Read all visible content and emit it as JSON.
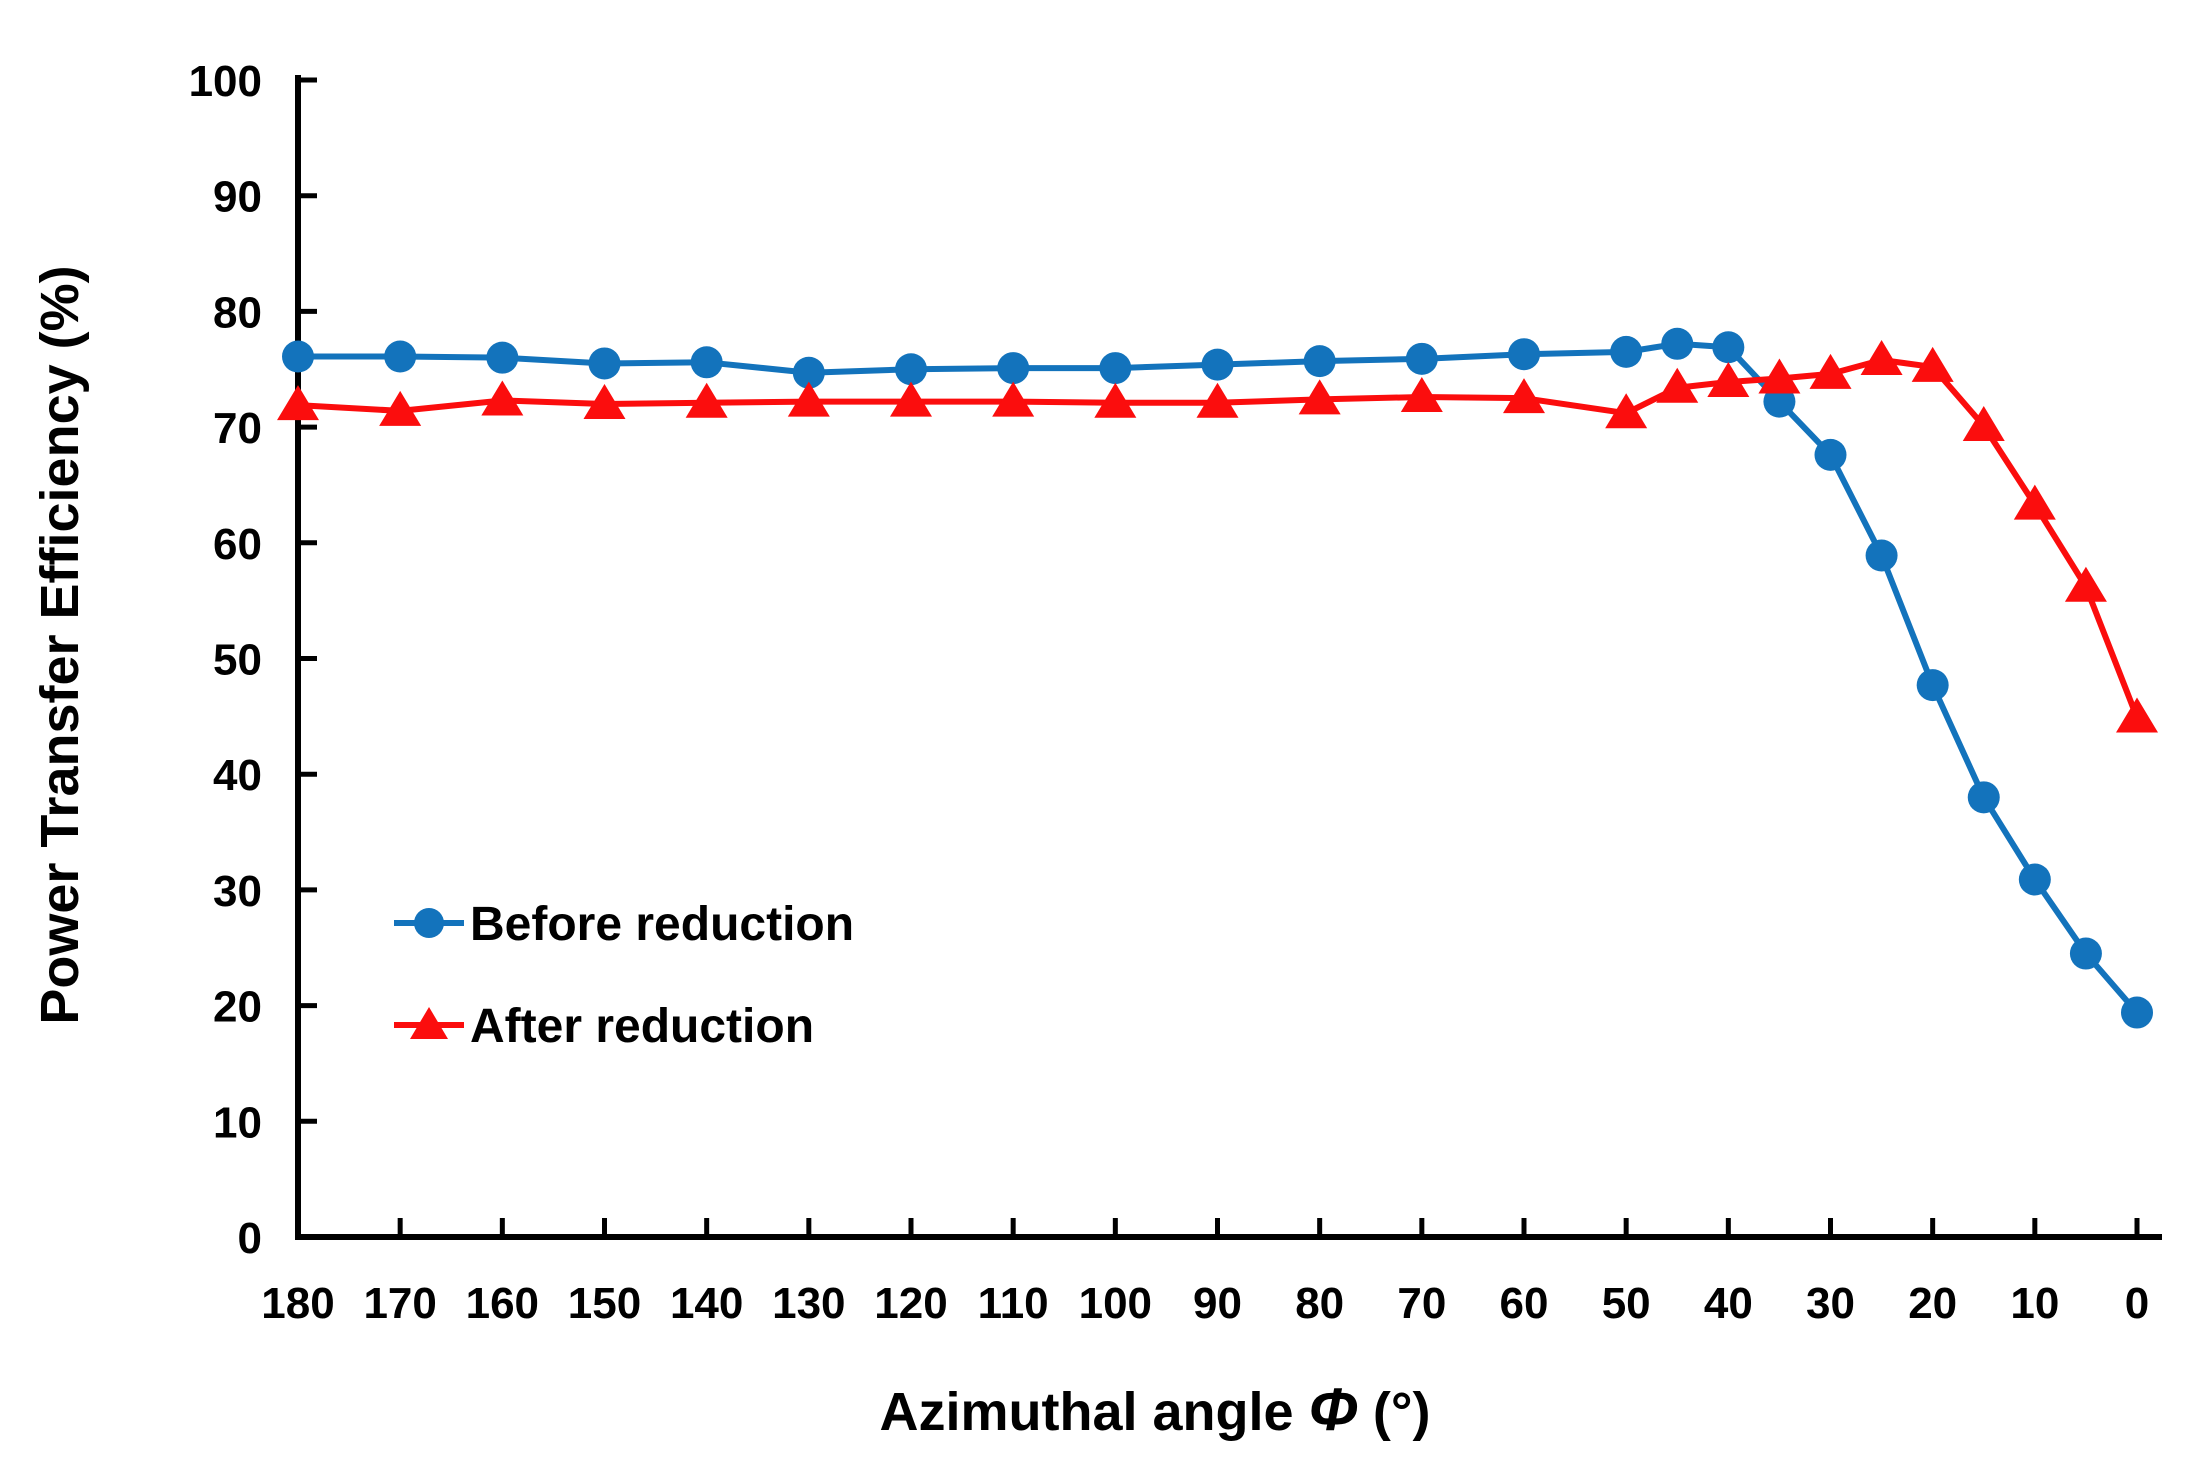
{
  "figure": {
    "background": "#ffffff",
    "text_color": "#000000",
    "axis_color": "#000000"
  },
  "chart_data": {
    "type": "line",
    "title": "",
    "xlabel_prefix": "Azimuthal angle ",
    "xlabel_symbol": "Φ",
    "xlabel_suffix": " (°)",
    "ylabel": "Power Transfer Efficiency (%)",
    "xlim": [
      180,
      0
    ],
    "ylim": [
      0,
      100
    ],
    "x_reversed": true,
    "grid": false,
    "legend_position": "inside-lower-left",
    "x_ticks": [
      180,
      170,
      160,
      150,
      140,
      130,
      120,
      110,
      100,
      90,
      80,
      70,
      60,
      50,
      40,
      30,
      20,
      10,
      0
    ],
    "y_ticks": [
      0,
      10,
      20,
      30,
      40,
      50,
      60,
      70,
      80,
      90,
      100
    ],
    "x": [
      180,
      170,
      160,
      150,
      140,
      130,
      120,
      110,
      100,
      90,
      80,
      70,
      60,
      50,
      45,
      40,
      35,
      30,
      25,
      20,
      15,
      10,
      5,
      0
    ],
    "series": [
      {
        "name": "Before reduction",
        "color": "#1373BC",
        "marker": "circle",
        "values": [
          76.1,
          76.1,
          76.0,
          75.5,
          75.6,
          74.7,
          75.0,
          75.1,
          75.1,
          75.4,
          75.7,
          75.9,
          76.3,
          76.5,
          77.2,
          76.9,
          72.2,
          67.6,
          58.9,
          47.7,
          38.0,
          30.9,
          24.5,
          19.4
        ]
      },
      {
        "name": "After reduction",
        "color": "#FB0D0D",
        "marker": "triangle",
        "values": [
          71.9,
          71.4,
          72.3,
          72.0,
          72.1,
          72.2,
          72.2,
          72.2,
          72.1,
          72.1,
          72.4,
          72.6,
          72.5,
          71.2,
          73.4,
          73.9,
          74.2,
          74.6,
          75.8,
          75.2,
          70.1,
          63.3,
          56.2,
          44.9
        ]
      }
    ]
  }
}
